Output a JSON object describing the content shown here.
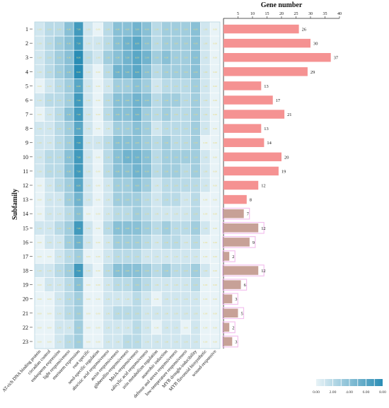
{
  "chart_data": [
    {
      "type": "heatmap",
      "title": "",
      "xlabel": "",
      "ylabel": "Subfamily",
      "rows": [
        "1",
        "2",
        "3",
        "4",
        "5",
        "6",
        "7",
        "8",
        "9",
        "10",
        "11",
        "12",
        "13",
        "14",
        "15",
        "16",
        "17",
        "18",
        "19",
        "20",
        "21",
        "22",
        "23"
      ],
      "columns": [
        "AT-rich DNA binding protein",
        "circadian control",
        "endosperm expression",
        "light responsiveness",
        "meristem expression",
        "root specific",
        "seed-specific regulation",
        "abscisic acid responsiveness",
        "auxin responsiveness",
        "gibberellin-responsiveness",
        "MeJA-responsiveness",
        "salicylic acid responsiveness",
        "zein metabolism regulation",
        "anaerobic induction",
        "defense and stress responsiveness",
        "low-temperature responsiveness",
        "MYB drought-inducibility",
        "MYB flavonoid biosynthetic",
        "wound-responsive"
      ],
      "values": [
        [
          1.0,
          2.0,
          2.0,
          4.0,
          7.0,
          1.0,
          0.0,
          2.0,
          4.0,
          4.0,
          5.0,
          4.0,
          2.0,
          3.0,
          3.0,
          3.0,
          4.0,
          1.0,
          0.0
        ],
        [
          1.0,
          2.0,
          3.0,
          4.0,
          7.0,
          1.0,
          1.0,
          2.0,
          4.0,
          5.0,
          6.0,
          4.0,
          2.0,
          3.0,
          3.0,
          3.0,
          4.0,
          1.0,
          0.0
        ],
        [
          1.0,
          2.0,
          3.0,
          4.0,
          8.0,
          2.0,
          1.0,
          3.0,
          4.0,
          5.0,
          6.0,
          5.0,
          3.0,
          4.0,
          3.0,
          3.0,
          4.0,
          1.0,
          0.0
        ],
        [
          1.0,
          2.0,
          3.0,
          4.0,
          8.0,
          1.0,
          0.0,
          2.0,
          5.0,
          5.0,
          6.0,
          4.0,
          2.0,
          3.0,
          3.0,
          3.0,
          4.0,
          1.0,
          0.0
        ],
        [
          0.0,
          1.0,
          2.0,
          3.0,
          6.0,
          1.0,
          0.0,
          1.0,
          3.0,
          3.0,
          4.0,
          3.0,
          1.0,
          2.0,
          2.0,
          2.0,
          3.0,
          1.0,
          0.0
        ],
        [
          1.0,
          2.0,
          2.0,
          3.0,
          7.0,
          1.0,
          0.0,
          2.0,
          4.0,
          4.0,
          5.0,
          4.0,
          2.0,
          3.0,
          3.0,
          2.0,
          3.0,
          1.0,
          0.0
        ],
        [
          0.0,
          1.0,
          2.0,
          4.0,
          7.0,
          1.0,
          0.0,
          2.0,
          4.0,
          4.0,
          5.0,
          3.0,
          2.0,
          3.0,
          2.0,
          2.0,
          3.0,
          1.0,
          0.0
        ],
        [
          1.0,
          1.0,
          2.0,
          3.0,
          6.0,
          1.0,
          0.0,
          1.0,
          3.0,
          3.0,
          4.0,
          3.0,
          1.0,
          2.0,
          2.0,
          2.0,
          3.0,
          1.0,
          0.0
        ],
        [
          1.0,
          1.0,
          2.0,
          3.0,
          7.0,
          1.0,
          1.0,
          2.0,
          4.0,
          4.0,
          4.0,
          3.0,
          2.0,
          3.0,
          2.0,
          2.0,
          3.0,
          0.0,
          0.0
        ],
        [
          1.0,
          2.0,
          2.0,
          4.0,
          7.0,
          1.0,
          0.0,
          2.0,
          4.0,
          5.0,
          5.0,
          4.0,
          2.0,
          3.0,
          3.0,
          3.0,
          3.0,
          1.0,
          0.0
        ],
        [
          1.0,
          2.0,
          2.0,
          4.0,
          7.0,
          1.0,
          0.0,
          2.0,
          4.0,
          4.0,
          5.0,
          4.0,
          2.0,
          3.0,
          3.0,
          2.0,
          3.0,
          1.0,
          0.0
        ],
        [
          0.0,
          1.0,
          2.0,
          3.0,
          6.0,
          1.0,
          0.0,
          1.0,
          3.0,
          3.0,
          4.0,
          3.0,
          1.0,
          2.0,
          2.0,
          2.0,
          2.0,
          1.0,
          0.0
        ],
        [
          0.0,
          1.0,
          1.0,
          3.0,
          5.0,
          1.0,
          0.0,
          1.0,
          3.0,
          3.0,
          3.0,
          2.0,
          1.0,
          2.0,
          2.0,
          1.0,
          2.0,
          0.0,
          0.0
        ],
        [
          0.0,
          1.0,
          1.0,
          2.0,
          4.0,
          0.0,
          0.0,
          1.0,
          2.0,
          2.0,
          3.0,
          2.0,
          1.0,
          1.0,
          1.0,
          1.0,
          2.0,
          0.0,
          0.0
        ],
        [
          1.0,
          1.0,
          2.0,
          3.0,
          7.0,
          1.0,
          0.0,
          2.0,
          4.0,
          4.0,
          4.0,
          3.0,
          2.0,
          3.0,
          2.0,
          2.0,
          3.0,
          1.0,
          0.0
        ],
        [
          0.0,
          1.0,
          1.0,
          3.0,
          5.0,
          1.0,
          0.0,
          1.0,
          3.0,
          3.0,
          3.0,
          2.0,
          1.0,
          2.0,
          2.0,
          1.0,
          2.0,
          0.0,
          0.0
        ],
        [
          0.0,
          0.0,
          1.0,
          2.0,
          3.0,
          0.0,
          0.0,
          1.0,
          2.0,
          2.0,
          2.0,
          1.0,
          1.0,
          1.0,
          1.0,
          1.0,
          1.0,
          0.0,
          0.0
        ],
        [
          1.0,
          1.0,
          2.0,
          3.0,
          7.0,
          1.0,
          0.0,
          2.0,
          4.0,
          4.0,
          4.0,
          3.0,
          2.0,
          3.0,
          2.0,
          2.0,
          3.0,
          1.0,
          0.0
        ],
        [
          0.0,
          1.0,
          1.0,
          2.0,
          4.0,
          0.0,
          0.0,
          1.0,
          2.0,
          2.0,
          3.0,
          2.0,
          1.0,
          1.0,
          1.0,
          1.0,
          2.0,
          0.0,
          0.0
        ],
        [
          0.0,
          0.0,
          1.0,
          2.0,
          3.0,
          0.0,
          0.0,
          1.0,
          1.0,
          1.0,
          2.0,
          1.0,
          0.0,
          1.0,
          1.0,
          1.0,
          1.0,
          0.0,
          0.0
        ],
        [
          0.0,
          0.0,
          1.0,
          2.0,
          3.0,
          0.0,
          0.0,
          1.0,
          2.0,
          2.0,
          2.0,
          1.0,
          1.0,
          1.0,
          1.0,
          1.0,
          1.0,
          0.0,
          0.0
        ],
        [
          0.0,
          0.0,
          1.0,
          1.0,
          3.0,
          0.0,
          0.0,
          1.0,
          1.0,
          1.0,
          2.0,
          1.0,
          0.0,
          1.0,
          1.0,
          0.0,
          1.0,
          0.0,
          0.0
        ],
        [
          0.0,
          0.0,
          1.0,
          2.0,
          3.0,
          0.0,
          0.0,
          1.0,
          1.0,
          2.0,
          2.0,
          1.0,
          1.0,
          1.0,
          1.0,
          1.0,
          1.0,
          0.0,
          0.0
        ]
      ],
      "colorbar": {
        "min": 0,
        "max": 8,
        "ticks": [
          "0.00",
          "2.00",
          "4.00",
          "6.00",
          "8.00"
        ],
        "color_low": "#e8f3f7",
        "color_high": "#2a8db5"
      },
      "grid": true
    },
    {
      "type": "bar",
      "orientation": "horizontal",
      "title": "Gene number",
      "categories": [
        "1",
        "2",
        "3",
        "4",
        "5",
        "6",
        "7",
        "8",
        "9",
        "10",
        "11",
        "12",
        "13",
        "14",
        "15",
        "16",
        "17",
        "18",
        "19",
        "20",
        "21",
        "22",
        "23"
      ],
      "values": [
        26,
        30,
        37,
        29,
        13,
        17,
        21,
        13,
        14,
        20,
        19,
        12,
        8,
        7,
        12,
        9,
        2,
        12,
        6,
        3,
        5,
        2,
        3
      ],
      "xlim": [
        0,
        40
      ],
      "ticks": [
        5,
        10,
        15,
        20,
        25,
        30,
        35,
        40
      ],
      "bar_color": "#f59292",
      "highlight_color": "#c7a197",
      "highlight_border": "#f3c0ee",
      "highlighted_rows": [
        "14",
        "15",
        "16",
        "17",
        "18",
        "19",
        "20",
        "21",
        "22",
        "23"
      ],
      "data_labels": true
    }
  ]
}
